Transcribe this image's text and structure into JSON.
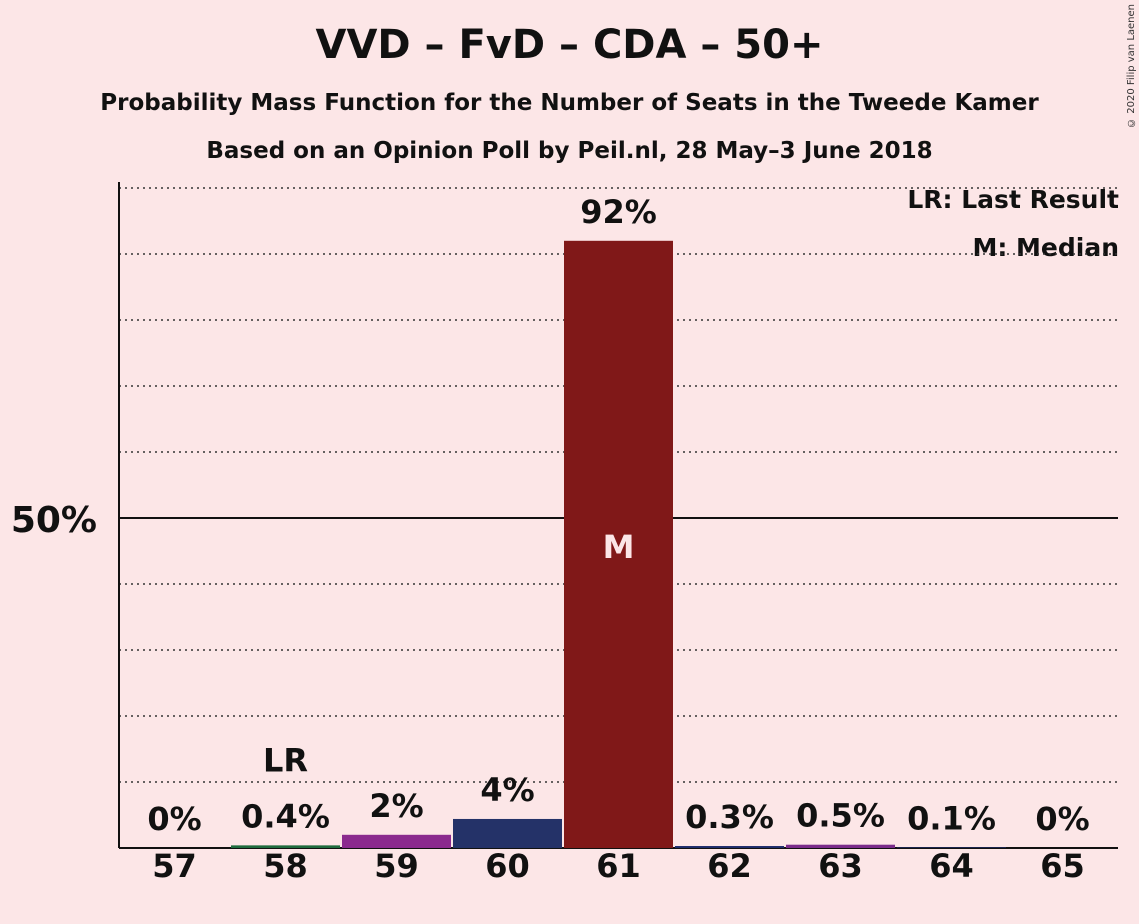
{
  "chart_data": {
    "type": "bar",
    "title": "VVD – FvD – CDA – 50+",
    "subtitle": "Probability Mass Function for the Number of Seats in the Tweede Kamer",
    "subtitle2": "Based on an Opinion Poll by Peil.nl, 28 May–3 June 2018",
    "copyright": "© 2020 Filip van Laenen",
    "categories": [
      "57",
      "58",
      "59",
      "60",
      "61",
      "62",
      "63",
      "64",
      "65"
    ],
    "values": [
      0,
      0.4,
      2,
      4.4,
      92,
      0.3,
      0.5,
      0.1,
      0
    ],
    "labels": [
      "0%",
      "0.4%",
      "2%",
      "4%",
      "92%",
      "0.3%",
      "0.5%",
      "0.1%",
      "0%"
    ],
    "colors": [
      "#1F2D6B",
      "#1E6B3E",
      "#8B2A8E",
      "#243268",
      "#801818",
      "#1F2D6B",
      "#7A2C8A",
      "#1F2D6B",
      "#1F2D6B"
    ],
    "last_result_category": "58",
    "last_result_marker": "LR",
    "median_category": "61",
    "median_marker": "M",
    "ylim": [
      0,
      100
    ],
    "ytick_label": "50%",
    "ytick_value": 50,
    "gridline_step": 10,
    "legend": {
      "lr": "LR: Last Result",
      "m": "M: Median"
    }
  }
}
